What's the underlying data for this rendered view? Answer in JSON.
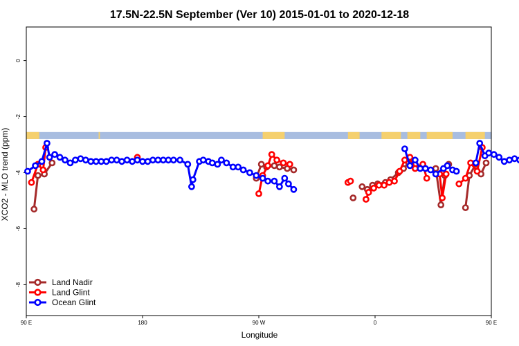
{
  "chart_data": {
    "type": "line",
    "title": "17.5N-22.5N September (Ver 10)   2015-01-01 to 2020-12-18",
    "xlabel": "Longitude",
    "ylabel": "XCO2 - MLO trend (ppm)",
    "xlim": [
      90,
      450
    ],
    "ylim": [
      -9.1,
      1.2
    ],
    "x_ticks": [
      {
        "value": 90,
        "label": "90 E"
      },
      {
        "value": 180,
        "label": "180"
      },
      {
        "value": 270,
        "label": "90 W"
      },
      {
        "value": 360,
        "label": "0"
      },
      {
        "value": 450,
        "label": "90 E"
      },
      {
        "value": 540,
        "label": "180"
      }
    ],
    "y_ticks": [
      {
        "value": 0,
        "label": "0"
      },
      {
        "value": -2,
        "label": "-2"
      },
      {
        "value": -4,
        "label": "-4"
      },
      {
        "value": -6,
        "label": "-6"
      },
      {
        "value": -8,
        "label": "-8"
      }
    ],
    "legend_position": "bottom-left",
    "land_strip": {
      "y_range": [
        -2.55,
        -2.8
      ],
      "ocean_color": "#a8bde0",
      "land_color": "#f5d06e",
      "land_segments": [
        [
          90,
          100
        ],
        [
          146,
          147
        ],
        [
          273,
          290
        ],
        [
          339,
          348
        ],
        [
          365,
          380
        ],
        [
          385,
          395
        ],
        [
          400,
          420
        ],
        [
          430,
          445
        ]
      ]
    },
    "series": [
      {
        "name": "Land Nadir",
        "color": "#a52a2a",
        "segments": [
          [
            [
              96,
              -5.3
            ],
            [
              99,
              -4.1
            ],
            [
              104,
              -4.05
            ],
            [
              110,
              -3.65
            ]
          ],
          [
            [
              268,
              -4.2
            ],
            [
              272,
              -3.7
            ],
            [
              276,
              -3.8
            ],
            [
              282,
              -3.75
            ],
            [
              286,
              -3.8
            ],
            [
              292,
              -3.85
            ],
            [
              297,
              -3.9
            ]
          ],
          [
            [
              343,
              -4.9
            ]
          ],
          [
            [
              350,
              -4.5
            ],
            [
              354,
              -4.6
            ],
            [
              358,
              -4.45
            ],
            [
              362,
              -4.4
            ],
            [
              368,
              -4.35
            ],
            [
              372,
              -4.25
            ],
            [
              378,
              -4.0
            ],
            [
              382,
              -3.85
            ],
            [
              386,
              -3.65
            ],
            [
              391,
              -3.7
            ],
            [
              396,
              -3.8
            ]
          ],
          [
            [
              407,
              -3.85
            ],
            [
              411,
              -5.15
            ],
            [
              414,
              -4.1
            ]
          ],
          [
            [
              417,
              -3.7
            ]
          ],
          [
            [
              430,
              -5.25
            ],
            [
              433,
              -4.1
            ],
            [
              438,
              -3.7
            ],
            [
              442,
              -4.05
            ],
            [
              446,
              -3.65
            ]
          ]
        ]
      },
      {
        "name": "Land Glint",
        "color": "#ff0000",
        "segments": [
          [
            [
              94,
              -4.35
            ],
            [
              99,
              -3.7
            ],
            [
              103,
              -3.9
            ],
            [
              105,
              -3.1
            ]
          ],
          [
            [
              176,
              -3.45
            ]
          ],
          [
            [
              270,
              -4.75
            ],
            [
              273,
              -4.1
            ],
            [
              277,
              -3.75
            ],
            [
              280,
              -3.35
            ],
            [
              284,
              -3.55
            ],
            [
              289,
              -3.65
            ],
            [
              294,
              -3.7
            ]
          ],
          [
            [
              339,
              -4.35
            ],
            [
              341,
              -4.3
            ]
          ],
          [
            [
              353,
              -4.95
            ],
            [
              355,
              -4.7
            ],
            [
              359,
              -4.55
            ],
            [
              363,
              -4.45
            ],
            [
              367,
              -4.45
            ],
            [
              371,
              -4.35
            ],
            [
              375,
              -4.3
            ],
            [
              379,
              -3.95
            ],
            [
              383,
              -3.55
            ],
            [
              387,
              -3.45
            ],
            [
              391,
              -3.85
            ],
            [
              397,
              -3.7
            ],
            [
              400,
              -4.2
            ]
          ],
          [
            [
              410,
              -4.05
            ],
            [
              412,
              -4.9
            ],
            [
              415,
              -4.05
            ]
          ],
          [
            [
              425,
              -4.4
            ],
            [
              430,
              -4.2
            ],
            [
              434,
              -3.65
            ],
            [
              439,
              -3.95
            ],
            [
              443,
              -3.1
            ]
          ]
        ]
      },
      {
        "name": "Ocean Glint",
        "color": "#0000ff",
        "segments": [
          [
            [
              91,
              -3.95
            ],
            [
              97,
              -3.75
            ],
            [
              102,
              -3.6
            ],
            [
              106,
              -2.95
            ],
            [
              108,
              -3.45
            ],
            [
              112,
              -3.35
            ],
            [
              116,
              -3.45
            ],
            [
              120,
              -3.55
            ],
            [
              124,
              -3.65
            ],
            [
              128,
              -3.55
            ],
            [
              132,
              -3.5
            ],
            [
              136,
              -3.55
            ],
            [
              140,
              -3.6
            ],
            [
              144,
              -3.6
            ],
            [
              148,
              -3.6
            ],
            [
              152,
              -3.6
            ],
            [
              156,
              -3.55
            ],
            [
              160,
              -3.55
            ],
            [
              164,
              -3.6
            ],
            [
              168,
              -3.55
            ],
            [
              172,
              -3.6
            ],
            [
              176,
              -3.55
            ],
            [
              180,
              -3.6
            ],
            [
              184,
              -3.6
            ],
            [
              188,
              -3.55
            ],
            [
              192,
              -3.55
            ],
            [
              196,
              -3.55
            ],
            [
              200,
              -3.55
            ],
            [
              204,
              -3.55
            ],
            [
              209,
              -3.55
            ],
            [
              215,
              -3.7
            ],
            [
              218,
              -4.5
            ],
            [
              219,
              -4.25
            ],
            [
              224,
              -3.6
            ],
            [
              227,
              -3.55
            ],
            [
              231,
              -3.6
            ],
            [
              234,
              -3.65
            ],
            [
              238,
              -3.7
            ],
            [
              241,
              -3.55
            ],
            [
              245,
              -3.65
            ],
            [
              250,
              -3.8
            ],
            [
              254,
              -3.8
            ],
            [
              258,
              -3.9
            ],
            [
              263,
              -4.0
            ],
            [
              268,
              -4.1
            ],
            [
              273,
              -4.2
            ],
            [
              277,
              -4.3
            ],
            [
              282,
              -4.3
            ],
            [
              286,
              -4.5
            ],
            [
              290,
              -4.2
            ],
            [
              293,
              -4.4
            ],
            [
              297,
              -4.6
            ]
          ],
          [
            [
              383,
              -3.15
            ],
            [
              387,
              -3.75
            ],
            [
              391,
              -3.55
            ],
            [
              395,
              -3.85
            ],
            [
              399,
              -3.85
            ],
            [
              403,
              -3.9
            ],
            [
              407,
              -4.05
            ],
            [
              413,
              -3.85
            ],
            [
              416,
              -3.75
            ],
            [
              420,
              -3.9
            ],
            [
              423,
              -3.95
            ]
          ],
          [
            [
              438,
              -3.65
            ],
            [
              441,
              -2.95
            ],
            [
              445,
              -3.4
            ],
            [
              448,
              -3.3
            ],
            [
              452,
              -3.35
            ],
            [
              456,
              -3.45
            ],
            [
              460,
              -3.6
            ],
            [
              464,
              -3.55
            ],
            [
              468,
              -3.5
            ],
            [
              472,
              -3.55
            ],
            [
              476,
              -3.6
            ],
            [
              480,
              -3.6
            ],
            [
              484,
              -3.6
            ],
            [
              488,
              -3.55
            ],
            [
              493,
              -3.55
            ]
          ]
        ]
      }
    ]
  }
}
